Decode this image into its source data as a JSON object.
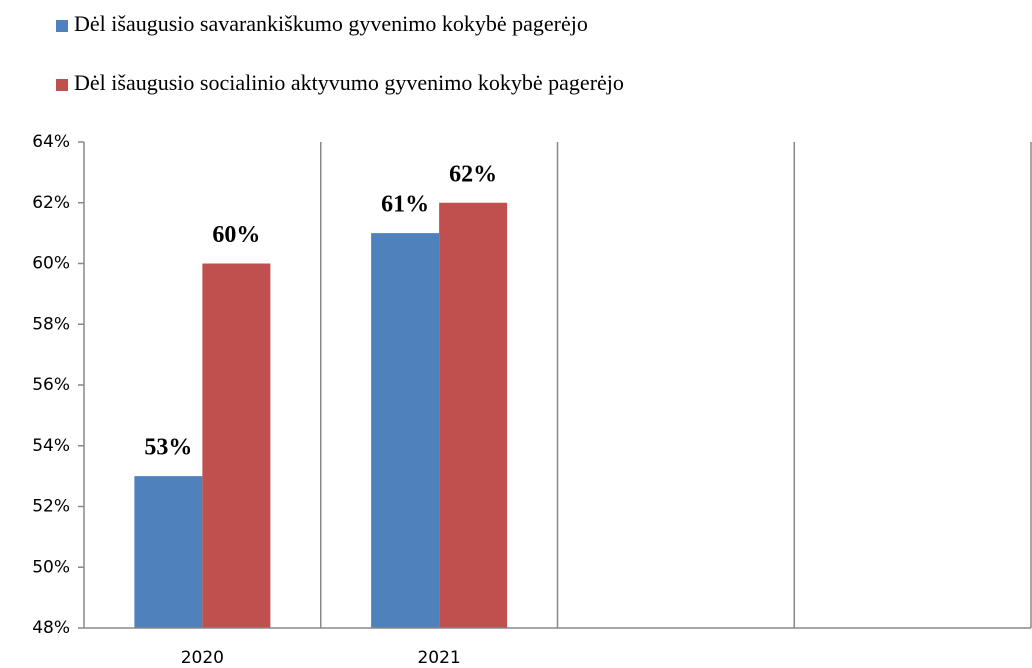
{
  "chart_data": {
    "type": "bar",
    "categories": [
      "2020",
      "2021",
      null,
      null
    ],
    "series": [
      {
        "name": "Dėl išaugusio savarankiškumo gyvenimo kokybė pagerėjo",
        "color": "#4f81bd",
        "values": [
          53,
          61,
          null,
          null
        ],
        "value_labels": [
          "53%",
          "61%",
          null,
          null
        ]
      },
      {
        "name": "Dėl išaugusio socialinio aktyvumo gyvenimo kokybė pagerėjo",
        "color": "#c0504d",
        "values": [
          60,
          62,
          null,
          null
        ],
        "value_labels": [
          "60%",
          "62%",
          null,
          null
        ]
      }
    ],
    "ylim": [
      48,
      64
    ],
    "yticks": [
      {
        "value": 48,
        "label": "48%"
      },
      {
        "value": 50,
        "label": "50%"
      },
      {
        "value": 52,
        "label": "52%"
      },
      {
        "value": 54,
        "label": "54%"
      },
      {
        "value": 56,
        "label": "56%"
      },
      {
        "value": 58,
        "label": "58%"
      },
      {
        "value": 60,
        "label": "60%"
      },
      {
        "value": 62,
        "label": "62%"
      },
      {
        "value": 64,
        "label": "64%"
      }
    ],
    "legend": "top-left"
  }
}
